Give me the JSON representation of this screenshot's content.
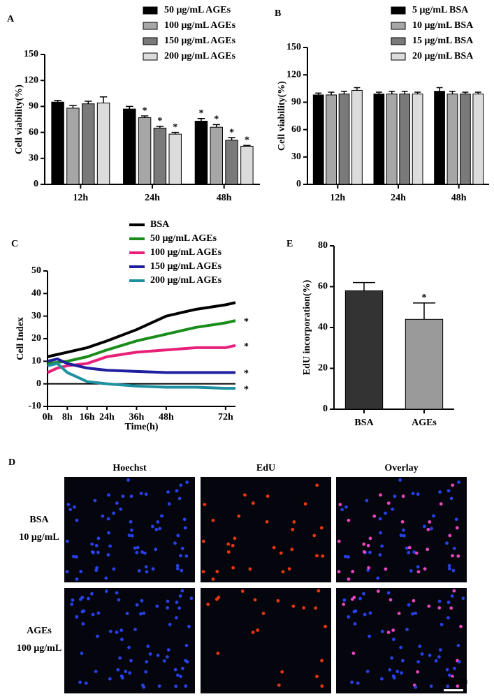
{
  "chart_data": [
    {
      "type": "bar",
      "panel": "A",
      "ylabel": "Cell viability(%)",
      "categories": [
        "12h",
        "24h",
        "48h"
      ],
      "series": [
        {
          "name": "50 μg/mL AGEs",
          "color": "#000000",
          "values": [
            95,
            87,
            73
          ],
          "errors": [
            2,
            3,
            3
          ],
          "annotations": [
            null,
            null,
            "*"
          ]
        },
        {
          "name": "100 μg/mL AGEs",
          "color": "#a6a6a6",
          "values": [
            88,
            77,
            66
          ],
          "errors": [
            3,
            2,
            3
          ],
          "annotations": [
            null,
            "*",
            "*"
          ]
        },
        {
          "name": "150 μg/mL AGEs",
          "color": "#7a7a7a",
          "values": [
            93,
            65,
            51
          ],
          "errors": [
            3,
            2,
            3
          ],
          "annotations": [
            null,
            "*",
            "*"
          ]
        },
        {
          "name": "200 μg/mL AGEs",
          "color": "#dcdcdc",
          "values": [
            94,
            58,
            44
          ],
          "errors": [
            7,
            2,
            1
          ],
          "annotations": [
            null,
            "*",
            "*"
          ]
        }
      ],
      "ylim": [
        0,
        150
      ],
      "yticks": [
        0,
        30,
        60,
        90,
        120,
        150
      ]
    },
    {
      "type": "bar",
      "panel": "B",
      "ylabel": "Cell viability(%)",
      "categories": [
        "12h",
        "24h",
        "48h"
      ],
      "series": [
        {
          "name": "5 μg/mL BSA",
          "color": "#000000",
          "values": [
            98,
            99,
            102
          ],
          "errors": [
            2,
            2,
            4
          ]
        },
        {
          "name": "10 μg/mL BSA",
          "color": "#a6a6a6",
          "values": [
            98,
            99,
            99
          ],
          "errors": [
            3,
            3,
            3
          ]
        },
        {
          "name": "15 μg/mL BSA",
          "color": "#7a7a7a",
          "values": [
            99,
            99,
            99
          ],
          "errors": [
            3,
            3,
            2
          ]
        },
        {
          "name": "20 μg/mL BSA",
          "color": "#dcdcdc",
          "values": [
            103,
            99,
            99
          ],
          "errors": [
            3,
            2,
            2
          ]
        }
      ],
      "ylim": [
        0,
        150
      ],
      "yticks": [
        0,
        30,
        60,
        90,
        120,
        150
      ]
    },
    {
      "type": "line",
      "panel": "C",
      "ylabel": "Cell Index",
      "xlabel": "Time(h)",
      "x": [
        0,
        4,
        8,
        16,
        24,
        36,
        48,
        60,
        72,
        76
      ],
      "series": [
        {
          "name": "BSA",
          "color": "#000000",
          "values": [
            12,
            13,
            14,
            16,
            19,
            24,
            30,
            33,
            35,
            36
          ]
        },
        {
          "name": "50 μg/mL AGEs",
          "color": "#1a8c1a",
          "values": [
            9,
            9.5,
            10,
            12,
            15,
            19,
            22,
            25,
            27,
            28
          ],
          "annotation": "*"
        },
        {
          "name": "100 μg/mL AGEs",
          "color": "#e8207a",
          "values": [
            5,
            7,
            8,
            9,
            12,
            14,
            15,
            16,
            16,
            17
          ],
          "annotation": "*"
        },
        {
          "name": "150 μg/mL AGEs",
          "color": "#1f1fa0",
          "values": [
            10,
            11,
            9,
            7,
            6,
            5.5,
            5,
            5,
            5,
            5
          ],
          "annotation": "*"
        },
        {
          "name": "200 μg/mL AGEs",
          "color": "#1e90a0",
          "values": [
            8,
            9,
            5,
            1,
            0,
            -1,
            -1.5,
            -1.5,
            -2,
            -2
          ],
          "annotation": "*"
        }
      ],
      "xlim": [
        0,
        76
      ],
      "xticks": [
        {
          "value": 0,
          "label": "0h"
        },
        {
          "value": 8,
          "label": "8h"
        },
        {
          "value": 16,
          "label": "16h"
        },
        {
          "value": 24,
          "label": "24h"
        },
        {
          "value": 36,
          "label": "36h"
        },
        {
          "value": 48,
          "label": "48h"
        },
        {
          "value": 72,
          "label": "72h"
        }
      ],
      "ylim": [
        -10,
        50
      ],
      "yticks": [
        -10,
        0,
        10,
        20,
        30,
        40,
        50
      ]
    },
    {
      "type": "bar",
      "panel": "E",
      "ylabel": "EdU incorporation(%)",
      "categories": [
        "BSA",
        "AGEs"
      ],
      "values": [
        58,
        44
      ],
      "errors": [
        4,
        8
      ],
      "annotations": [
        null,
        "*"
      ],
      "colors": [
        "#333333",
        "#9a9a9a"
      ],
      "ylim": [
        0,
        80
      ],
      "yticks": [
        0,
        20,
        40,
        60,
        80
      ]
    }
  ],
  "panel_d": {
    "panel": "D",
    "columns": [
      "Hoechst",
      "EdU",
      "Overlay"
    ],
    "rows": [
      {
        "label": "BSA",
        "sublabel": "10 μg/mL"
      },
      {
        "label": "AGEs",
        "sublabel": "100 μg/mL"
      }
    ],
    "scale_bar": "100μm"
  }
}
